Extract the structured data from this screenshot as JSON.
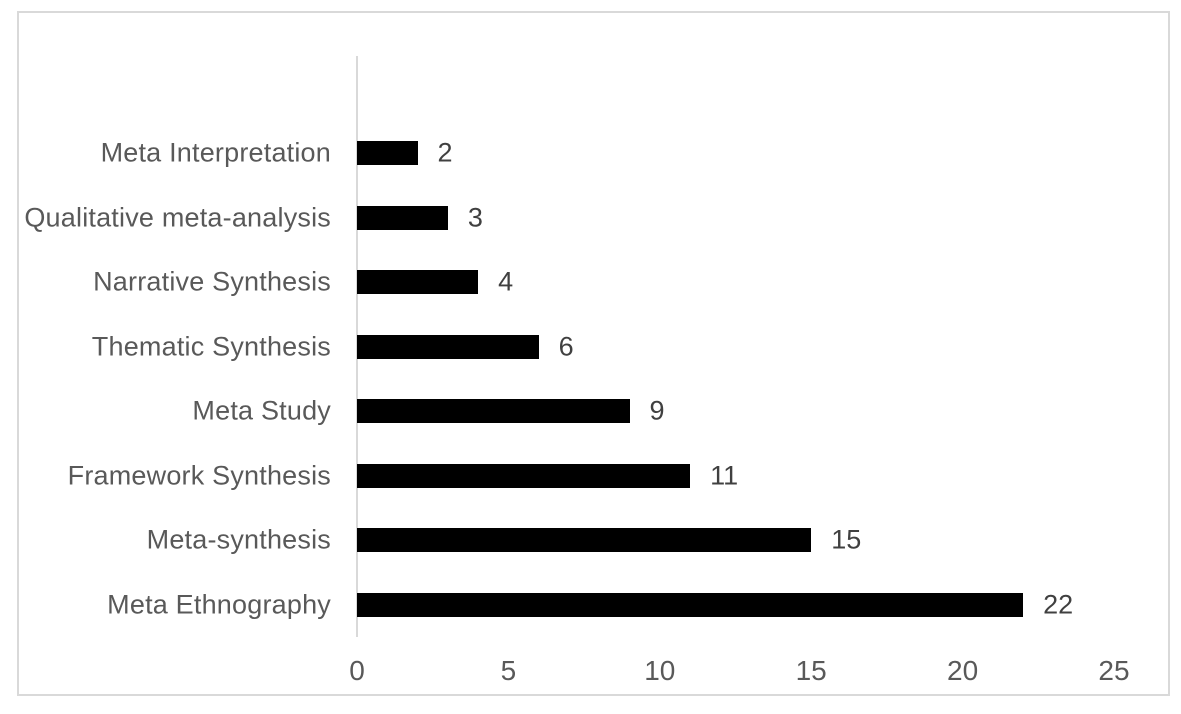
{
  "figure": {
    "background": "#ffffff",
    "border_color": "#d9d9d9"
  },
  "chart_data": {
    "type": "bar",
    "orientation": "horizontal",
    "title": "",
    "categories": [
      "Meta Interpretation",
      "Qualitative meta-analysis",
      "Narrative Synthesis",
      "Thematic Synthesis",
      "Meta Study",
      "Framework Synthesis",
      "Meta-synthesis",
      "Meta Ethnography"
    ],
    "values": [
      2,
      3,
      4,
      6,
      9,
      11,
      15,
      22
    ],
    "data_labels": [
      "2",
      "3",
      "4",
      "6",
      "9",
      "11",
      "15",
      "22"
    ],
    "xlabel": "",
    "ylabel": "",
    "xlim": [
      0,
      25
    ],
    "x_ticks": [
      0,
      5,
      10,
      15,
      20,
      25
    ],
    "grid": false,
    "legend_position": "none",
    "bar_color": "#000000",
    "category_label_color": "#595959",
    "value_label_color": "#404040",
    "tick_label_color": "#595959",
    "axis_line_color": "#d9d9d9"
  }
}
